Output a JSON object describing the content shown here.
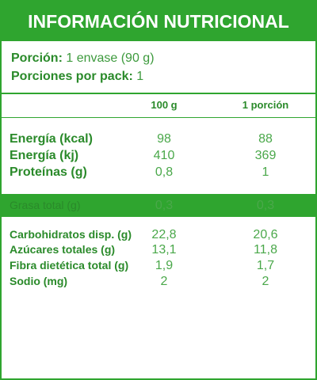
{
  "header": {
    "title": "INFORMACIÓN NUTRICIONAL"
  },
  "serving": {
    "portion_label": "Porción:",
    "portion_value": "1 envase (90 g)",
    "pack_label": "Porciones por pack:",
    "pack_value": "1"
  },
  "table": {
    "columns": [
      "100 g",
      "1 porción"
    ],
    "main_rows": [
      {
        "label": "Energía (kcal)",
        "values": [
          "98",
          "88"
        ]
      },
      {
        "label": "Energía (kj)",
        "values": [
          "410",
          "369"
        ]
      },
      {
        "label": "Proteínas (g)",
        "values": [
          "0,8",
          "1"
        ]
      }
    ],
    "highlight_row": {
      "label": "Grasa total (g)",
      "values": [
        "0,3",
        "0,3"
      ]
    },
    "detail_rows": [
      {
        "label": "Carbohidratos disp. (g)",
        "values": [
          "22,8",
          "20,6"
        ]
      },
      {
        "label": "Azúcares totales (g)",
        "values": [
          "13,1",
          "11,8"
        ]
      },
      {
        "label": "Fibra dietética total (g)",
        "values": [
          "1,9",
          "1,7"
        ]
      },
      {
        "label": "Sodio (mg)",
        "values": [
          "2",
          "2"
        ]
      }
    ]
  }
}
